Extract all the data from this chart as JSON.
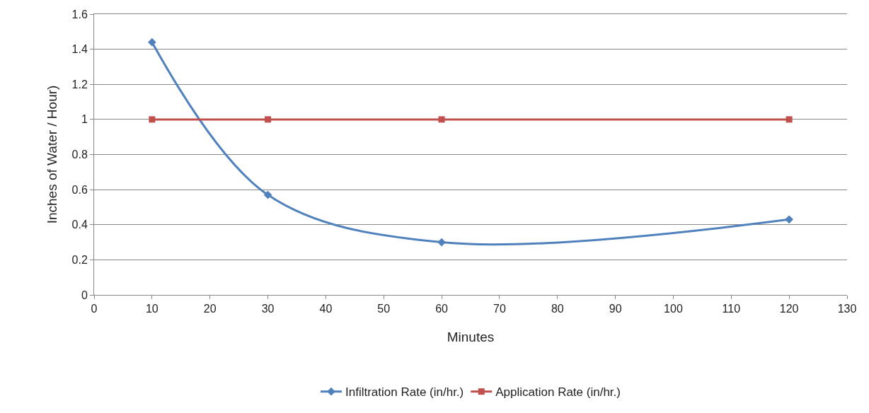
{
  "chart_data": {
    "type": "line",
    "xlabel": "Minutes",
    "ylabel": "Inches of Water / Hour)",
    "xlim": [
      0,
      130
    ],
    "xticks": [
      0,
      10,
      20,
      30,
      40,
      50,
      60,
      70,
      80,
      90,
      100,
      110,
      120,
      130
    ],
    "ylim": [
      0,
      1.6
    ],
    "yticks": [
      0,
      0.2,
      0.4,
      0.6,
      0.8,
      1,
      1.2,
      1.4,
      1.6
    ],
    "grid": "y",
    "legend": "bottom",
    "line_style": "solid",
    "series": [
      {
        "name": "Infiltration Rate (in/hr.)",
        "color": "#4f81bd",
        "marker": "diamond",
        "x": [
          10,
          30,
          60,
          120
        ],
        "values": [
          1.44,
          0.57,
          0.3,
          0.43
        ]
      },
      {
        "name": "Application Rate (in/hr.)",
        "color": "#c0504d",
        "marker": "square",
        "x": [
          10,
          30,
          60,
          120
        ],
        "values": [
          1,
          1,
          1,
          1
        ]
      }
    ]
  }
}
